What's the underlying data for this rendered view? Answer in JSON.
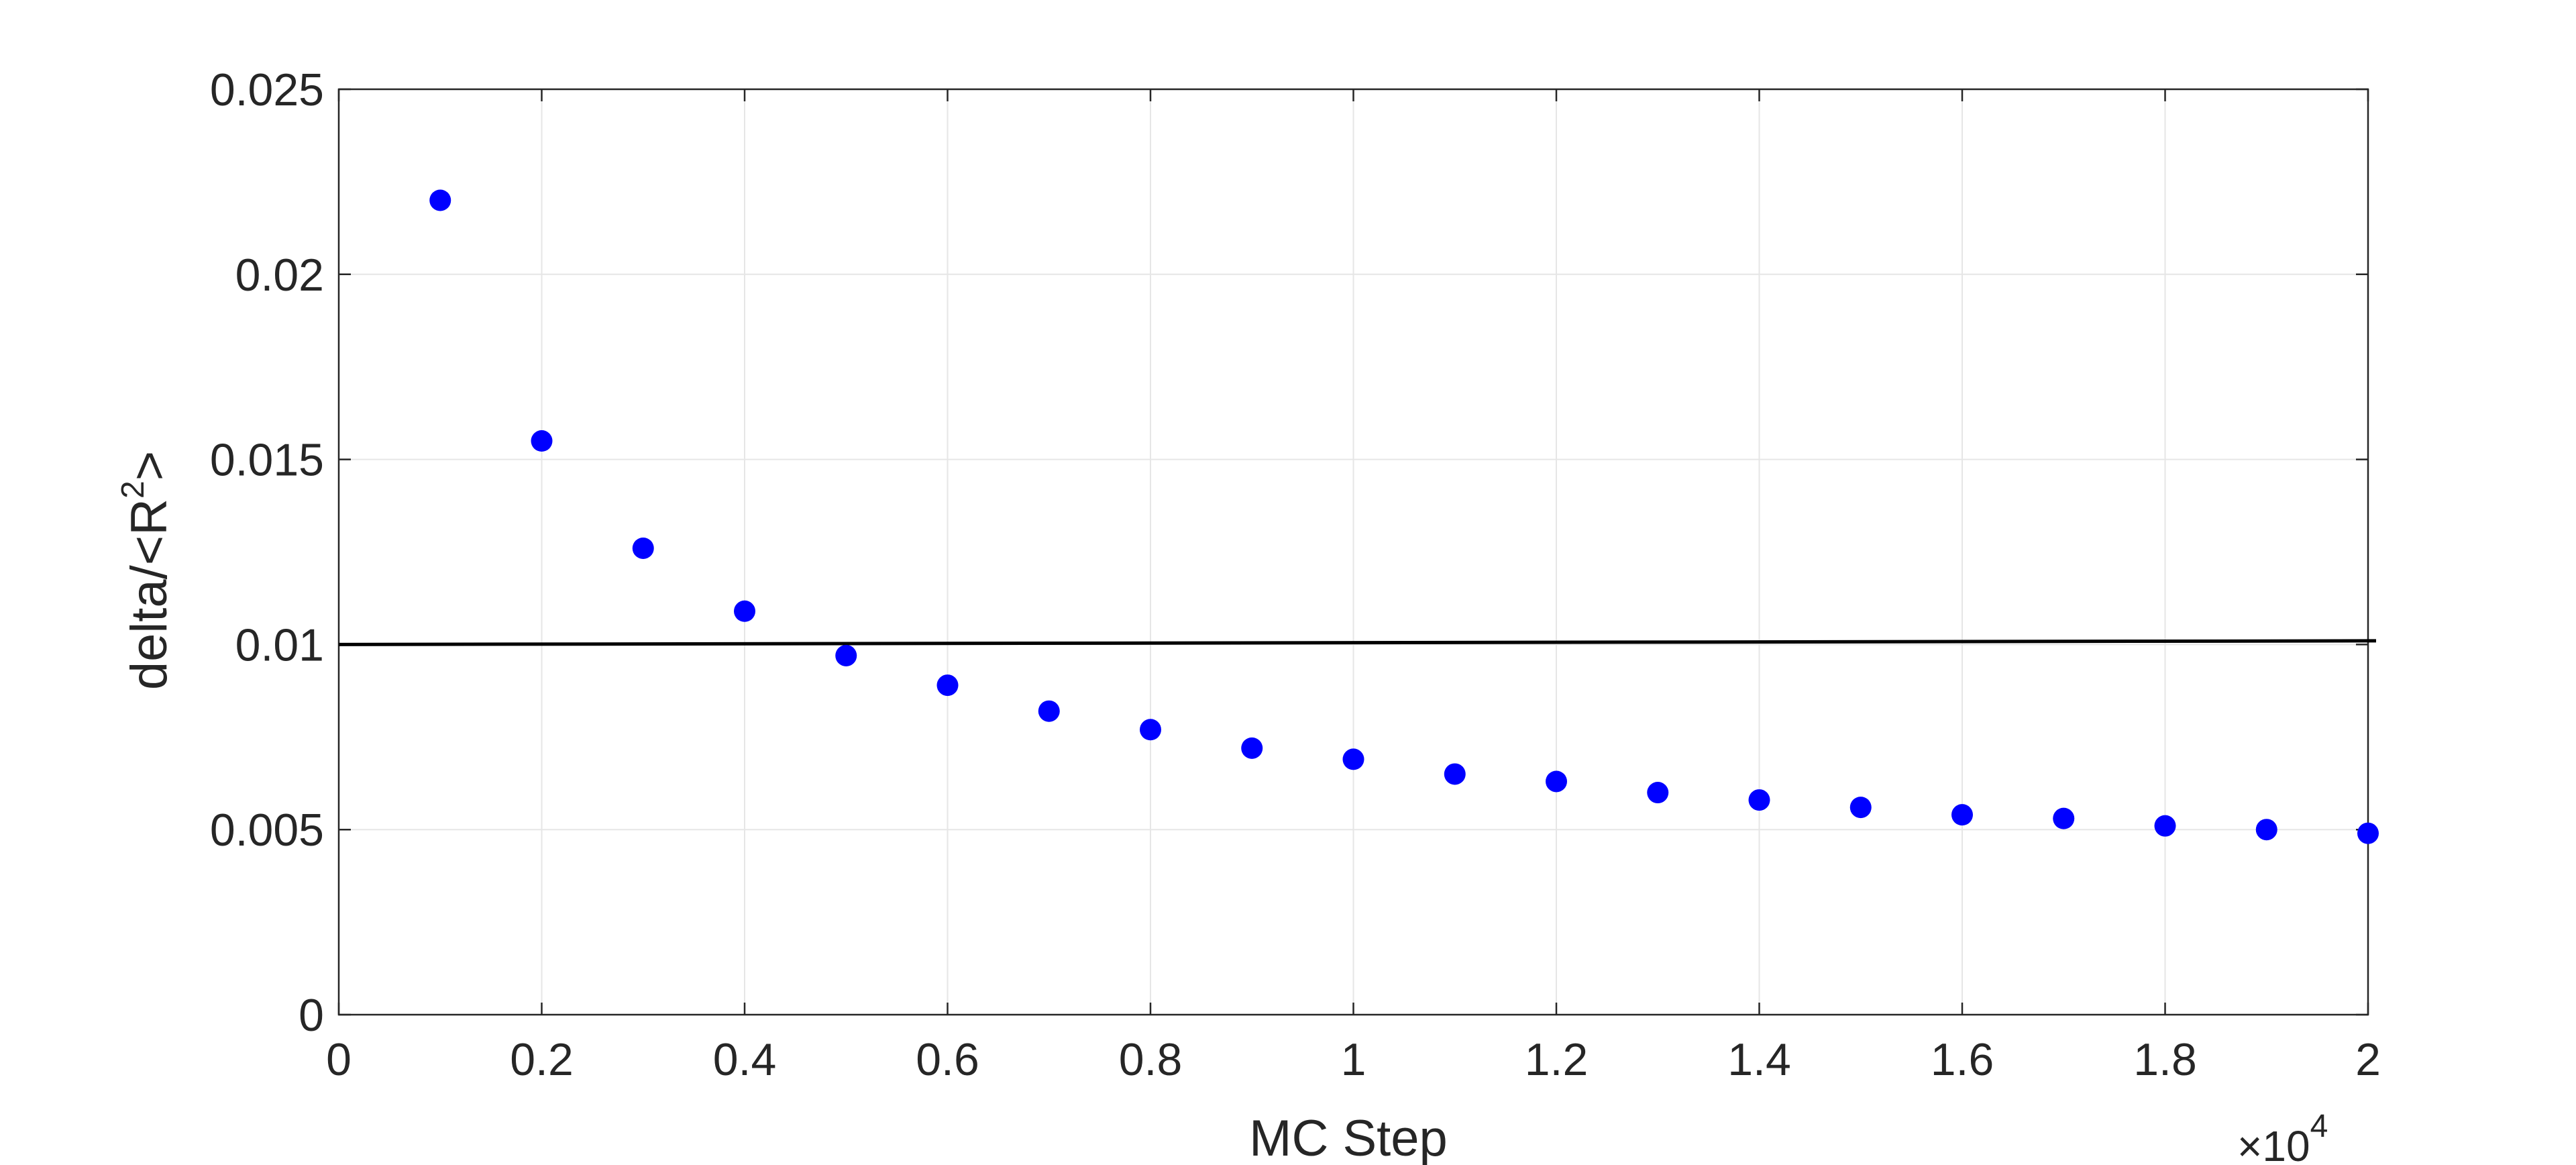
{
  "chart_data": {
    "type": "scatter",
    "xlabel": "MC Step",
    "ylabel_base": "delta/<R",
    "ylabel_sup": "2",
    "ylabel_tail": ">",
    "x_exponent_times": "×10",
    "x_exponent_power": "4",
    "xlim": [
      0,
      20000
    ],
    "ylim": [
      0,
      0.025
    ],
    "x_ticks": [
      0,
      2000,
      4000,
      6000,
      8000,
      10000,
      12000,
      14000,
      16000,
      18000,
      20000
    ],
    "x_tick_labels": [
      "0",
      "0.2",
      "0.4",
      "0.6",
      "0.8",
      "1",
      "1.2",
      "1.4",
      "1.6",
      "1.8",
      "2"
    ],
    "y_ticks": [
      0,
      0.005,
      0.01,
      0.015,
      0.02,
      0.025
    ],
    "y_tick_labels": [
      "0",
      "0.005",
      "0.01",
      "0.015",
      "0.02",
      "0.025"
    ],
    "grid": true,
    "series": [
      {
        "marker_color": "#0000ff",
        "x": [
          1000,
          2000,
          3000,
          4000,
          5000,
          6000,
          7000,
          8000,
          9000,
          10000,
          11000,
          12000,
          13000,
          14000,
          15000,
          16000,
          17000,
          18000,
          19000,
          20000
        ],
        "y": [
          0.022,
          0.0155,
          0.0126,
          0.0109,
          0.0097,
          0.0089,
          0.0082,
          0.0077,
          0.0072,
          0.0069,
          0.0065,
          0.0063,
          0.006,
          0.0058,
          0.0056,
          0.0054,
          0.0053,
          0.0051,
          0.005,
          0.0049
        ]
      }
    ],
    "reference_lines": [
      {
        "color": "#000000",
        "x": [
          0,
          20000
        ],
        "y": [
          0.01,
          0.0101
        ]
      }
    ]
  }
}
